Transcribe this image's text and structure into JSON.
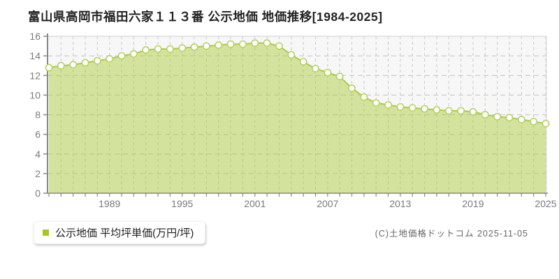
{
  "page": {
    "title": "富山県高岡市福田六家１１３番 公示地価 地価推移[1984-2025]",
    "copyright": "(C)土地価格ドットコム 2025-11-05"
  },
  "legend": {
    "label": "公示地価 平均坪単価(万円/坪)",
    "marker_color": "#a8c820"
  },
  "chart_data": {
    "type": "area",
    "title": "富山県高岡市福田六家１１３番 公示地価 地価推移[1984-2025]",
    "ylabel_unit": "万円/坪",
    "xlabel": "",
    "ylim": [
      0,
      16
    ],
    "ytick_step": 2,
    "grid": true,
    "legend_position": "bottom-left",
    "x": [
      1984,
      1985,
      1986,
      1987,
      1988,
      1989,
      1990,
      1991,
      1992,
      1993,
      1994,
      1995,
      1996,
      1997,
      1998,
      1999,
      2000,
      2001,
      2002,
      2003,
      2004,
      2005,
      2006,
      2007,
      2008,
      2009,
      2010,
      2011,
      2012,
      2013,
      2014,
      2015,
      2016,
      2017,
      2018,
      2019,
      2020,
      2021,
      2022,
      2023,
      2024,
      2025
    ],
    "series": [
      {
        "name": "公示地価 平均坪単価(万円/坪)",
        "values": [
          12.8,
          13.0,
          13.1,
          13.3,
          13.5,
          13.7,
          14.0,
          14.2,
          14.6,
          14.7,
          14.7,
          14.8,
          14.9,
          15.0,
          15.1,
          15.2,
          15.2,
          15.3,
          15.3,
          15.0,
          14.1,
          13.4,
          12.7,
          12.3,
          11.9,
          10.7,
          9.8,
          9.2,
          9.0,
          8.8,
          8.7,
          8.6,
          8.5,
          8.4,
          8.4,
          8.3,
          8.0,
          7.8,
          7.7,
          7.5,
          7.3,
          7.1
        ]
      }
    ],
    "xticks_labeled": [
      1989,
      1995,
      2001,
      2007,
      2013,
      2019,
      2025
    ],
    "colors": {
      "area_fill": "rgba(172,204,60,0.48)",
      "line": "#a9cc45",
      "marker_fill": "#ffffff",
      "marker_stroke": "#b7d45c",
      "plot_bg": "#f7f7f7",
      "gridline": "#cccccc",
      "axis": "#888888",
      "plot_border": "#dddddd"
    }
  }
}
